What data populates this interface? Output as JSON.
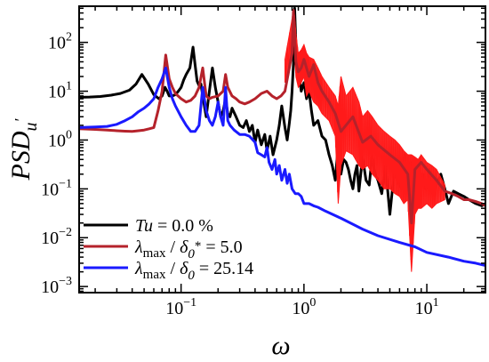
{
  "chart_data": {
    "type": "line",
    "xlabel": "ω",
    "ylabel": {
      "main": "PSD",
      "sub": "u",
      "prime": "′"
    },
    "xscale": "log",
    "yscale": "log",
    "xlim": [
      0.0148,
      30
    ],
    "ylim": [
      0.00075,
      550
    ],
    "x_ticks": [
      {
        "value": 0.1,
        "base": "10",
        "exp": "−1"
      },
      {
        "value": 1,
        "base": "10",
        "exp": "0"
      },
      {
        "value": 10,
        "base": "10",
        "exp": "1"
      }
    ],
    "y_ticks": [
      {
        "value": 0.001,
        "base": "10",
        "exp": "−3"
      },
      {
        "value": 0.01,
        "base": "10",
        "exp": "−2"
      },
      {
        "value": 0.1,
        "base": "10",
        "exp": "−1"
      },
      {
        "value": 1,
        "base": "10",
        "exp": "0"
      },
      {
        "value": 10,
        "base": "10",
        "exp": "1"
      },
      {
        "value": 100,
        "base": "10",
        "exp": "2"
      }
    ],
    "legend_position": "bottom-left",
    "legend": [
      {
        "series": 0,
        "parts": [
          {
            "t": "Tu",
            "style": "italic"
          },
          {
            "t": " = 0.0 %",
            "style": "normal"
          }
        ]
      },
      {
        "series": 1,
        "parts": [
          {
            "t": "λ",
            "style": "italic"
          },
          {
            "t": "max",
            "style": "sub"
          },
          {
            "t": " / ",
            "style": "normal"
          },
          {
            "t": "δ",
            "style": "italic"
          },
          {
            "t": "0",
            "style": "sub-italic"
          },
          {
            "t": "*",
            "style": "sup"
          },
          {
            "t": " = 5.0",
            "style": "normal"
          }
        ]
      },
      {
        "series": 2,
        "parts": [
          {
            "t": "λ",
            "style": "italic"
          },
          {
            "t": "max",
            "style": "sub"
          },
          {
            "t": " / ",
            "style": "normal"
          },
          {
            "t": "δ",
            "style": "italic"
          },
          {
            "t": "0",
            "style": "sub-italic"
          },
          {
            "t": " = 25.14",
            "style": "normal"
          }
        ]
      }
    ],
    "series": [
      {
        "color": "#000000",
        "fill": "none",
        "x": [
          0.0148,
          0.018,
          0.022,
          0.027,
          0.032,
          0.038,
          0.043,
          0.048,
          0.054,
          0.06,
          0.066,
          0.07,
          0.074,
          0.077,
          0.08,
          0.085,
          0.09,
          0.095,
          0.1,
          0.105,
          0.11,
          0.118,
          0.125,
          0.13,
          0.135,
          0.14,
          0.145,
          0.15,
          0.16,
          0.17,
          0.18,
          0.19,
          0.2,
          0.21,
          0.22,
          0.23,
          0.24,
          0.25,
          0.26,
          0.28,
          0.3,
          0.32,
          0.34,
          0.36,
          0.38,
          0.4,
          0.42,
          0.45,
          0.48,
          0.5,
          0.53,
          0.56,
          0.6,
          0.63,
          0.66,
          0.7,
          0.73,
          0.76,
          0.78,
          0.8,
          0.82,
          0.84,
          0.87,
          0.9,
          0.95,
          1.0,
          1.05,
          1.1,
          1.15,
          1.2,
          1.3,
          1.4,
          1.5,
          1.6,
          1.7,
          1.8,
          1.9,
          2.0,
          2.1,
          2.2,
          2.3,
          2.4,
          2.5,
          2.6,
          2.7,
          2.8,
          3.0,
          3.2,
          3.4,
          3.6,
          3.8,
          4.0,
          4.3,
          4.6,
          5.0,
          5.4,
          5.8,
          6.2,
          6.6,
          7.0,
          7.4,
          7.8,
          8.3,
          8.8,
          9.3,
          9.8,
          10.5,
          11.2,
          12.0,
          13.0,
          14.0,
          15.0,
          16.5,
          18.0,
          20.0,
          22.0,
          25.0,
          28.0,
          30.0
        ],
        "y": [
          7.5,
          7.6,
          7.8,
          8.3,
          9.0,
          10.5,
          14,
          22,
          14,
          8.5,
          7,
          8,
          12,
          10,
          8,
          8,
          8.5,
          10,
          12,
          17,
          22,
          30,
          80,
          35,
          16,
          13,
          14,
          8,
          3,
          10,
          30,
          12,
          6,
          3,
          4,
          7,
          3.5,
          3,
          4.5,
          3,
          2,
          1.8,
          2.5,
          1.5,
          2,
          0.9,
          1.6,
          0.8,
          1.3,
          0.6,
          1.2,
          0.5,
          1.0,
          2.0,
          5,
          1.8,
          1.0,
          2.2,
          4,
          10,
          35,
          500,
          40,
          30,
          10,
          15,
          7,
          10,
          4,
          2,
          2.5,
          1.2,
          1.0,
          0.5,
          0.3,
          0.15,
          0.8,
          0.2,
          0.4,
          0.35,
          0.25,
          0.15,
          0.1,
          0.2,
          0.3,
          0.09,
          0.45,
          0.15,
          0.12,
          0.5,
          0.2,
          0.15,
          0.08,
          0.3,
          0.03,
          0.2,
          0.15,
          0.1,
          0.5,
          0.08,
          0.35,
          0.09,
          0.25,
          0.12,
          0.2,
          0.1,
          0.25,
          0.08,
          0.12,
          0.2,
          0.1,
          0.05,
          0.09,
          0.08,
          0.07,
          0.06,
          0.05,
          0.045,
          0.05
        ]
      },
      {
        "color": "#b5222b",
        "fill": "#ff1a1a",
        "x": [
          0.0148,
          0.02,
          0.025,
          0.03,
          0.035,
          0.04,
          0.045,
          0.05,
          0.055,
          0.06,
          0.065,
          0.07,
          0.075,
          0.08,
          0.085,
          0.09,
          0.1,
          0.11,
          0.12,
          0.13,
          0.14,
          0.15,
          0.16,
          0.17,
          0.18,
          0.2,
          0.22,
          0.23,
          0.24,
          0.26,
          0.28,
          0.3,
          0.33,
          0.36,
          0.4,
          0.45,
          0.5,
          0.55,
          0.6,
          0.65,
          0.7,
          0.75,
          0.8,
          0.82,
          0.84,
          0.86,
          0.9,
          0.95,
          1.0,
          1.1,
          1.2,
          1.3,
          1.4,
          1.6,
          1.8,
          2.0,
          2.5,
          3.0,
          3.5,
          4.0,
          5.0,
          6.0,
          7.0,
          7.5,
          8.0,
          9.0,
          10.0,
          12.0,
          14.0,
          16.0,
          18.0,
          20.0,
          22.0,
          25.0,
          28.0,
          30.0
        ],
        "y": [
          1.7,
          1.65,
          1.6,
          1.55,
          1.52,
          1.5,
          1.55,
          1.6,
          1.7,
          1.8,
          4,
          10,
          55,
          18,
          12,
          9,
          7,
          6,
          6.5,
          8,
          12,
          30,
          8,
          7,
          7.5,
          8,
          10,
          22,
          12,
          8,
          7,
          6,
          5.5,
          6,
          7,
          9,
          10,
          8,
          7,
          8,
          10,
          25,
          60,
          450,
          120,
          40,
          25,
          30,
          45,
          20,
          35,
          15,
          10,
          6,
          3.5,
          1.5,
          3,
          0.9,
          1.2,
          0.8,
          0.5,
          0.35,
          0.2,
          0.02,
          0.25,
          0.35,
          0.25,
          0.15,
          0.09,
          0.08,
          0.07,
          0.06,
          0.06,
          0.055,
          0.05,
          0.045
        ],
        "band": [
          [
            0.7,
            15,
            45
          ],
          [
            0.8,
            50,
            300
          ],
          [
            0.82,
            150,
            480
          ],
          [
            0.84,
            60,
            350
          ],
          [
            0.86,
            20,
            150
          ],
          [
            0.9,
            12,
            60
          ],
          [
            0.95,
            15,
            70
          ],
          [
            1.0,
            20,
            90
          ],
          [
            1.05,
            8,
            60
          ],
          [
            1.1,
            10,
            50
          ],
          [
            1.2,
            6,
            45
          ],
          [
            1.3,
            5,
            30
          ],
          [
            1.4,
            3.5,
            20
          ],
          [
            1.6,
            2.5,
            12
          ],
          [
            1.8,
            1.2,
            8
          ],
          [
            1.9,
            0.05,
            5
          ],
          [
            2.0,
            0.3,
            20
          ],
          [
            2.2,
            0.6,
            8
          ],
          [
            2.5,
            0.5,
            12
          ],
          [
            2.8,
            0.3,
            6
          ],
          [
            3.0,
            0.25,
            3
          ],
          [
            3.3,
            0.3,
            4
          ],
          [
            3.6,
            0.2,
            3
          ],
          [
            4.0,
            0.15,
            2
          ],
          [
            4.5,
            0.1,
            1.5
          ],
          [
            5.0,
            0.1,
            1.2
          ],
          [
            5.5,
            0.08,
            1.0
          ],
          [
            6.0,
            0.07,
            0.8
          ],
          [
            6.5,
            0.05,
            0.6
          ],
          [
            7.0,
            0.06,
            0.5
          ],
          [
            7.5,
            0.002,
            0.5
          ],
          [
            8.0,
            0.03,
            0.45
          ],
          [
            8.5,
            0.04,
            0.4
          ],
          [
            9.0,
            0.04,
            0.5
          ],
          [
            10.0,
            0.05,
            0.35
          ],
          [
            11.0,
            0.04,
            0.3
          ],
          [
            12.0,
            0.05,
            0.25
          ],
          [
            14.0,
            0.06,
            0.12
          ]
        ]
      },
      {
        "color": "#1a1aff",
        "fill": "none",
        "x": [
          0.0148,
          0.02,
          0.025,
          0.03,
          0.035,
          0.04,
          0.045,
          0.05,
          0.055,
          0.06,
          0.065,
          0.07,
          0.075,
          0.08,
          0.085,
          0.09,
          0.1,
          0.11,
          0.12,
          0.13,
          0.14,
          0.15,
          0.16,
          0.17,
          0.18,
          0.19,
          0.2,
          0.21,
          0.22,
          0.23,
          0.24,
          0.25,
          0.27,
          0.3,
          0.33,
          0.36,
          0.4,
          0.42,
          0.45,
          0.48,
          0.5,
          0.52,
          0.55,
          0.58,
          0.6,
          0.63,
          0.66,
          0.7,
          0.73,
          0.76,
          0.8,
          0.85,
          0.9,
          0.95,
          1.0,
          1.1,
          1.2,
          1.3,
          1.5,
          2.0,
          3.0,
          4.0,
          6.0,
          8.0,
          10.0,
          15.0,
          20.0,
          25.0,
          30.0
        ],
        "y": [
          1.8,
          1.85,
          1.9,
          2.1,
          2.5,
          3,
          3.8,
          4.5,
          5.5,
          7,
          12,
          18,
          30,
          12,
          7,
          5,
          3,
          2,
          1.5,
          1.5,
          2,
          12,
          4,
          2.5,
          2,
          3,
          6,
          3,
          2,
          12,
          2.5,
          2,
          1.6,
          1.3,
          1.3,
          1.2,
          0.9,
          0.55,
          0.5,
          0.45,
          0.7,
          0.35,
          0.25,
          0.4,
          0.2,
          0.3,
          0.15,
          0.25,
          0.13,
          0.2,
          0.1,
          0.08,
          0.08,
          0.07,
          0.05,
          0.05,
          0.045,
          0.042,
          0.035,
          0.025,
          0.015,
          0.011,
          0.008,
          0.0065,
          0.005,
          0.004,
          0.0033,
          0.003,
          0.0027
        ]
      }
    ]
  }
}
